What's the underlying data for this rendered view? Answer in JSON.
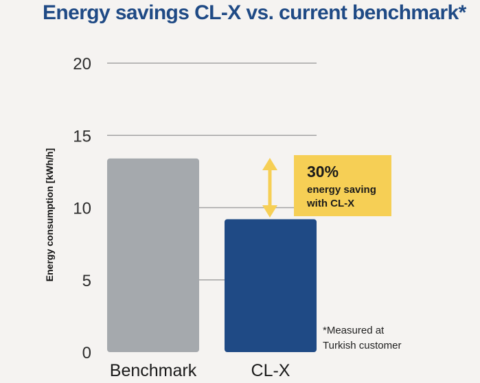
{
  "title": "Energy savings CL-X vs. current benchmark*",
  "chart_data": {
    "type": "bar",
    "categories": [
      "Benchmark",
      "CL-X"
    ],
    "values": [
      13.4,
      9.2
    ],
    "ylabel": "Energy consumption [kWh/h]",
    "xlabel": "",
    "ylim": [
      0,
      20
    ],
    "yticks": [
      0,
      5,
      10,
      15,
      20
    ],
    "grid": true,
    "colors": [
      "#a5a9ad",
      "#1f4a85"
    ],
    "callout": {
      "percent": "30%",
      "line1": "energy saving",
      "line2": "with CL-X",
      "background": "#f6cf55",
      "arrow_color": "#f6cf55"
    },
    "footnote": {
      "line1": "*Measured at",
      "line2": "Turkish customer"
    }
  }
}
